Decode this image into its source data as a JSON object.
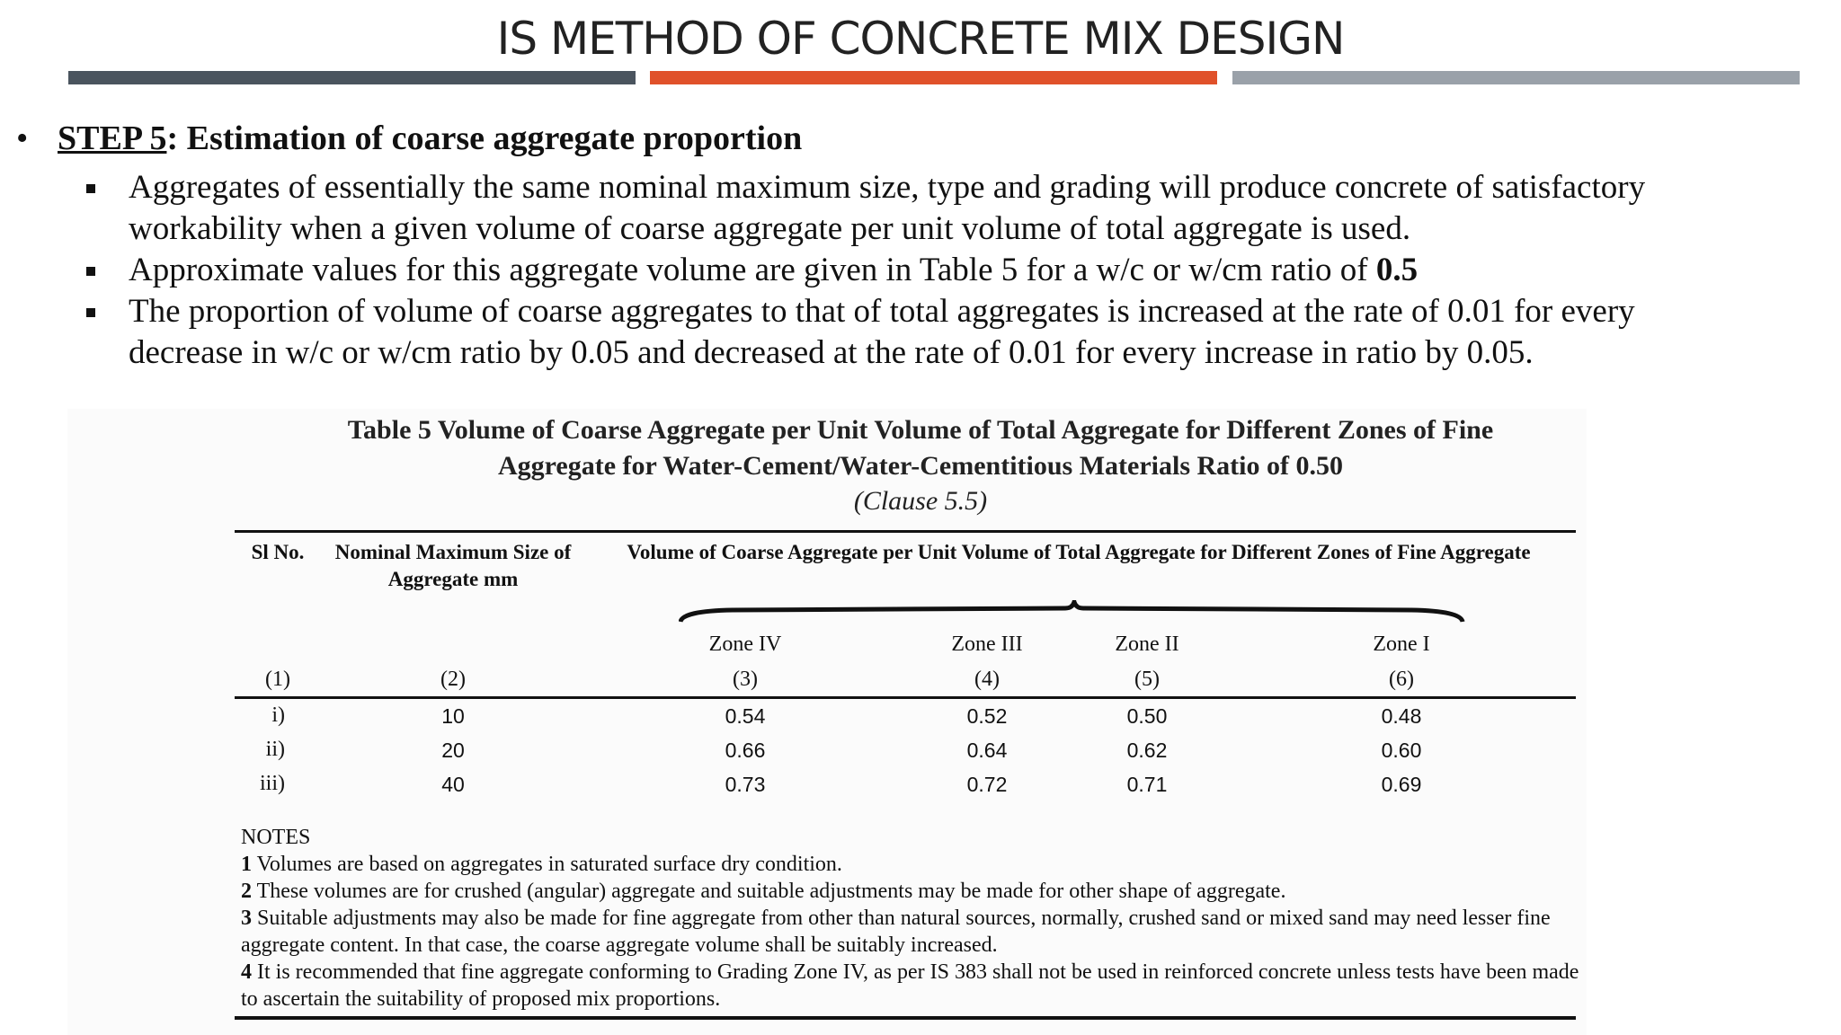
{
  "header": {
    "title": "IS METHOD OF CONCRETE MIX DESIGN"
  },
  "step": {
    "label": "STEP 5",
    "text": ": Estimation of coarse aggregate proportion"
  },
  "bullets": [
    {
      "text": "Aggregates of essentially the same nominal maximum size, type and grading will produce concrete of satisfactory workability when a given volume of coarse aggregate per unit volume of total aggregate is used."
    },
    {
      "text": "Approximate values for this aggregate volume are given in Table 5 for a w/c or w/cm ratio of ",
      "bold": "0.5"
    },
    {
      "text": "The proportion of volume of coarse aggregates to that of total aggregates is increased at the rate of 0.01 for every decrease in w/c or w/cm ratio by 0.05 and decreased at the rate of 0.01 for every increase in ratio by 0.05."
    }
  ],
  "table": {
    "caption": [
      "Table 5 Volume of Coarse Aggregate per Unit Volume of Total Aggregate for Different Zones of Fine",
      "Aggregate for Water-Cement/Water-Cementitious Materials Ratio of 0.50"
    ],
    "clause": "(Clause 5.5)",
    "columns": [
      "Sl No.",
      "Nominal Maximum Size of Aggregate mm",
      "Volume of Coarse Aggregate per Unit Volume of Total Aggregate for Different Zones of Fine Aggregate"
    ],
    "zones": [
      "Zone IV",
      "Zone III",
      "Zone II",
      "Zone I"
    ],
    "column_numbers": [
      "(1)",
      "(2)",
      "(3)",
      "(4)",
      "(5)",
      "(6)"
    ],
    "rows": [
      [
        "i)",
        "10",
        "0.54",
        "0.52",
        "0.50",
        "0.48"
      ],
      [
        "ii)",
        "20",
        "0.66",
        "0.64",
        "0.62",
        "0.60"
      ],
      [
        "iii)",
        "40",
        "0.73",
        "0.72",
        "0.71",
        "0.69"
      ]
    ],
    "notes": {
      "heading": "NOTES",
      "items": [
        {
          "number": "1",
          "text": "Volumes are based on aggregates in saturated surface dry condition."
        },
        {
          "number": "2",
          "text": "These volumes are for crushed (angular) aggregate and suitable adjustments may be made for other shape of aggregate."
        },
        {
          "number": "3",
          "text": "Suitable adjustments may also be made for fine aggregate from other than natural sources, normally, crushed sand or mixed sand may need lesser fine aggregate content. In that case, the coarse aggregate volume shall be suitably increased."
        },
        {
          "number": "4",
          "text": "It is recommended that fine aggregate conforming to Grading Zone IV, as per IS 383 shall not be used in reinforced concrete unless tests have been made to ascertain the suitability of proposed mix proportions."
        }
      ]
    }
  }
}
